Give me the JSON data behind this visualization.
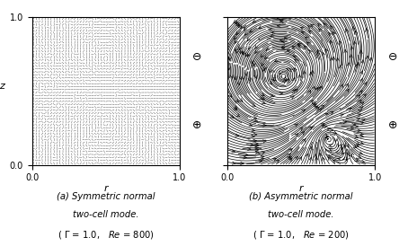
{
  "xlabel": "r",
  "ylabel": "z",
  "xlim": [
    0.0,
    1.0
  ],
  "ylim": [
    0.0,
    1.0
  ],
  "xtick_labels": [
    "0.0",
    "1.0"
  ],
  "ytick_labels": [
    "0.0",
    "1.0"
  ],
  "background": "#ffffff",
  "arrow_color": "#000000",
  "symbol_ominus": "⊖",
  "symbol_oplus": "⊕",
  "nx_quiver": 50,
  "ny_quiver": 50,
  "nx_stream": 80,
  "ny_stream": 80,
  "caption_a": "(a) Symmetric normal\ntwo-cell mode.\n",
  "caption_a2": "( Γ = 1.0,   Re = 800)",
  "caption_b": "(b) Asymmetric normal\ntwo-cell mode.\n",
  "caption_b2": "( Γ = 1.0,   Re = 200)"
}
